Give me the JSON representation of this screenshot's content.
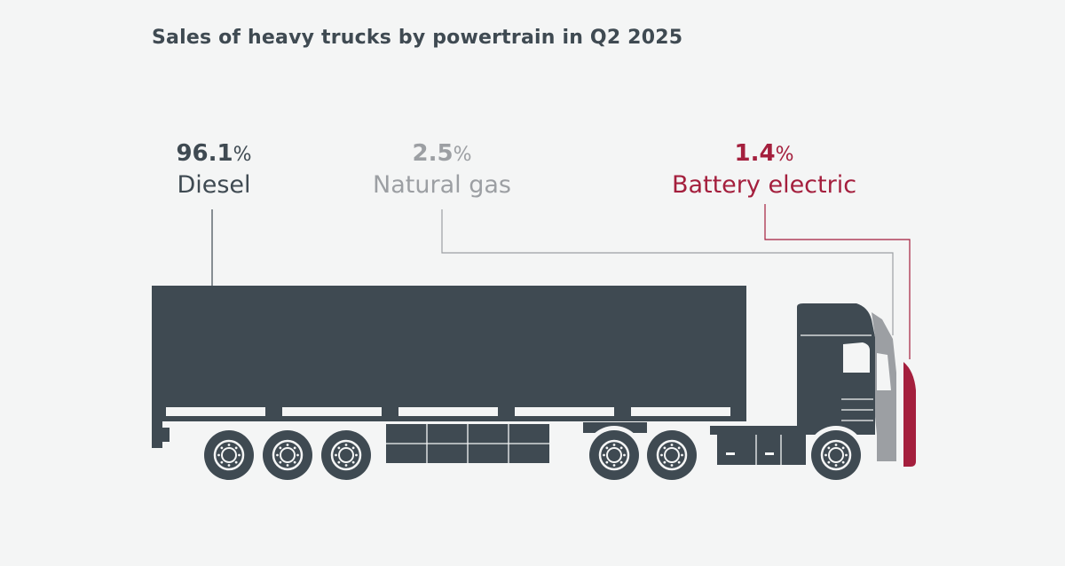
{
  "chart_data": {
    "type": "pie",
    "title": "Sales of heavy trucks by powertrain in Q2 2025",
    "unit": "%",
    "categories": [
      "Diesel",
      "Natural gas",
      "Battery electric"
    ],
    "values": [
      96.1,
      2.5,
      1.4
    ],
    "colors": [
      "#3f4a52",
      "#9c9fa3",
      "#a41f3d"
    ],
    "value_labels": [
      "96.1",
      "2.5",
      "1.4"
    ]
  },
  "colors": {
    "background": "#f4f5f5",
    "title": "#3f4a52",
    "cutout": "#f4f5f5"
  },
  "icons": [
    "truck-illustration",
    "wheel-icon"
  ]
}
